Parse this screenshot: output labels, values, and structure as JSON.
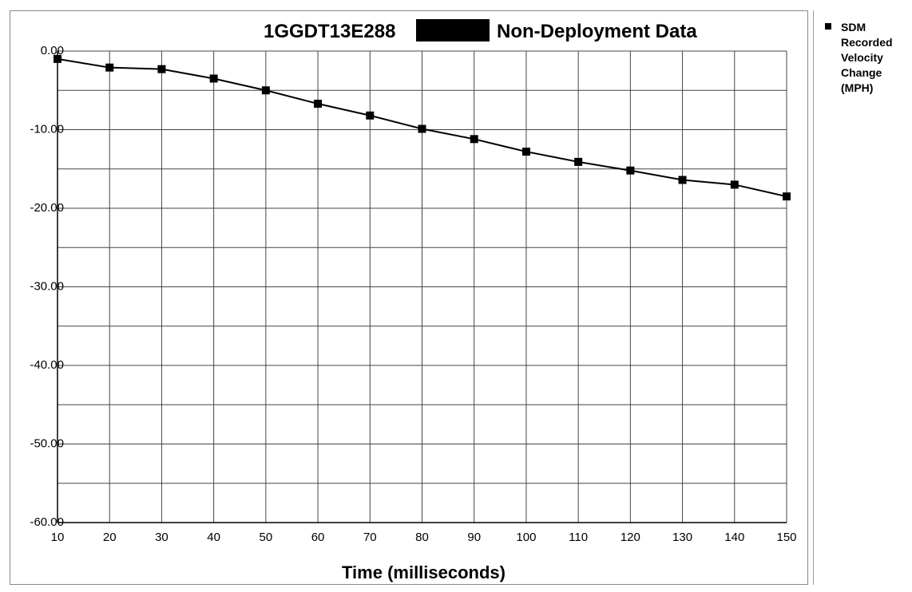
{
  "chart_data": {
    "type": "line",
    "title_part1": "1GGDT13E288",
    "title_part2": "Non-Deployment Data",
    "xlabel": "Time (milliseconds)",
    "ylabel": "",
    "x": [
      10,
      20,
      30,
      40,
      50,
      60,
      70,
      80,
      90,
      100,
      110,
      120,
      130,
      140,
      150
    ],
    "x_tick_labels": [
      "10",
      "20",
      "30",
      "40",
      "50",
      "60",
      "70",
      "80",
      "90",
      "100",
      "110",
      "120",
      "130",
      "140",
      "150"
    ],
    "y_tick_labels": [
      "0.00",
      "-10.00",
      "-20.00",
      "-30.00",
      "-40.00",
      "-50.00",
      "-60.00"
    ],
    "xlim": [
      10,
      150
    ],
    "ylim": [
      -60,
      0
    ],
    "grid": true,
    "legend_position": "right",
    "series": [
      {
        "name": "SDM Recorded Velocity Change (MPH)",
        "x": [
          10,
          20,
          30,
          40,
          50,
          60,
          70,
          80,
          90,
          100,
          110,
          120,
          130,
          140,
          150
        ],
        "values": [
          -1.0,
          -2.1,
          -2.3,
          -3.5,
          -5.0,
          -6.7,
          -8.2,
          -9.9,
          -11.2,
          -12.8,
          -14.1,
          -15.2,
          -16.4,
          -17.0,
          -18.5
        ]
      }
    ],
    "colors": {
      "line": "#000000",
      "grid": "#444444",
      "background": "#ffffff"
    }
  }
}
